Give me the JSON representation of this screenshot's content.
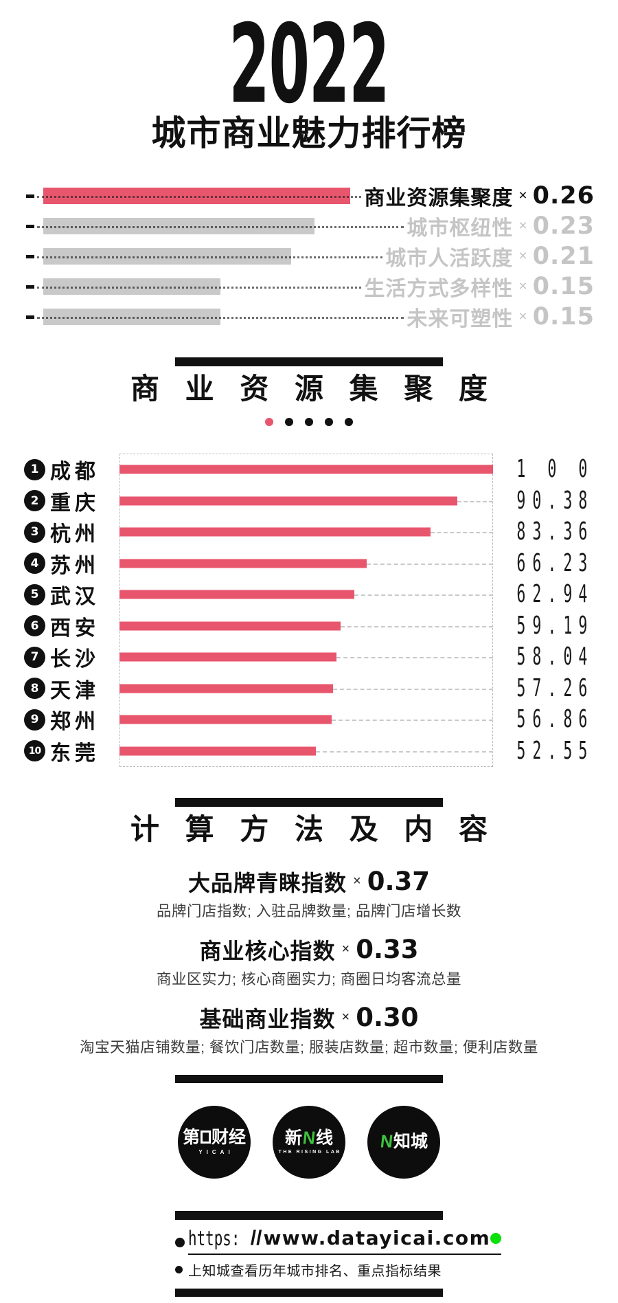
{
  "colors": {
    "accent": "#e8566e",
    "bar_gray": "#c9c9c9",
    "label_gray": "#c5c5c5",
    "logo_green": "#3cc23c",
    "dot_green": "#0ae00a"
  },
  "title": {
    "year": "2022",
    "subtitle": "城市商业魅力排行榜"
  },
  "times_symbol": "×",
  "chart_data": [
    {
      "type": "bar",
      "orientation": "horizontal",
      "title": "城市商业魅力排行榜 指标权重",
      "categories": [
        "商业资源集聚度",
        "城市枢纽性",
        "城市人活跃度",
        "生活方式多样性",
        "未来可塑性"
      ],
      "values": [
        0.26,
        0.23,
        0.21,
        0.15,
        0.15
      ],
      "value_labels": [
        "0.26",
        "0.23",
        "0.21",
        "0.15",
        "0.15"
      ],
      "highlight_index": 0,
      "xlim": [
        0,
        0.26
      ],
      "legend": "none",
      "grid": false
    },
    {
      "type": "bar",
      "orientation": "horizontal",
      "title": "商业资源集聚度",
      "categories": [
        "成都",
        "重庆",
        "杭州",
        "苏州",
        "武汉",
        "西安",
        "长沙",
        "天津",
        "郑州",
        "东莞"
      ],
      "ranks": [
        "1",
        "2",
        "3",
        "4",
        "5",
        "6",
        "7",
        "8",
        "9",
        "10"
      ],
      "values": [
        100,
        90.38,
        83.36,
        66.23,
        62.94,
        59.19,
        58.04,
        57.26,
        56.86,
        52.55
      ],
      "value_labels": [
        "100",
        "90.38",
        "83.36",
        "66.23",
        "62.94",
        "59.19",
        "58.04",
        "57.26",
        "56.86",
        "52.55"
      ],
      "xlim": [
        0,
        100
      ],
      "legend": "none",
      "grid": false
    }
  ],
  "section1": {
    "title": "商 业 资 源 集 聚 度",
    "dots_total": 5,
    "active_dot_index": 0
  },
  "section2": {
    "title": "计 算 方 法 及 内 容"
  },
  "methods": [
    {
      "name": "大品牌青睐指数",
      "value": "0.37",
      "detail": "品牌门店指数; 入驻品牌数量; 品牌门店增长数"
    },
    {
      "name": "商业核心指数",
      "value": "0.33",
      "detail": "商业区实力; 核心商圈实力; 商圈日均客流总量"
    },
    {
      "name": "基础商业指数",
      "value": "0.30",
      "detail": "淘宝天猫店铺数量; 餐饮门店数量; 服装店数量; 超市数量; 便利店数量"
    }
  ],
  "logos": {
    "yicai": {
      "line1_prefix": "第",
      "line1_suffix": "财经",
      "line2": "YICAI"
    },
    "rising_lab": {
      "line1_prefix": "新",
      "glyph": "N",
      "line1_suffix": "线",
      "line2": "THE RISING LAB"
    },
    "zhicheng": {
      "glyph": "N",
      "label": "知城"
    }
  },
  "footer": {
    "url_scheme": "https:",
    "url_slashes": "//",
    "url_domain": "www.datayicai.com",
    "note": "上知城查看历年城市排名、重点指标结果"
  }
}
